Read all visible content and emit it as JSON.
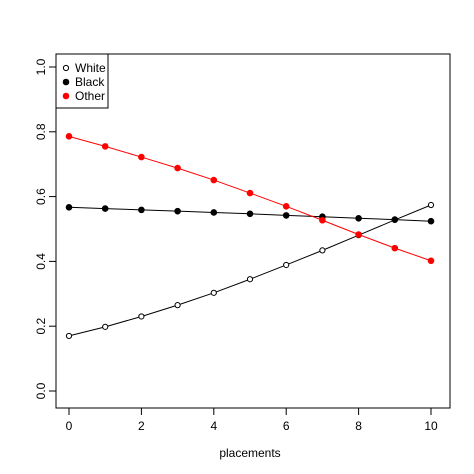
{
  "chart_data": {
    "type": "line",
    "title": "",
    "xlabel": "placements",
    "ylabel": "",
    "xlim": [
      0,
      10
    ],
    "ylim": [
      0,
      1
    ],
    "x_ticks": [
      0,
      2,
      4,
      6,
      8,
      10
    ],
    "y_ticks": [
      0.0,
      0.2,
      0.4,
      0.6,
      0.8,
      1.0
    ],
    "x_tick_labels": [
      "0",
      "2",
      "4",
      "6",
      "8",
      "10"
    ],
    "y_tick_labels": [
      "0.0",
      "0.2",
      "0.4",
      "0.6",
      "0.8",
      "1.0"
    ],
    "grid": false,
    "legend_position": "top-left",
    "x": [
      0,
      1,
      2,
      3,
      4,
      5,
      6,
      7,
      8,
      9,
      10
    ],
    "series": [
      {
        "name": "White",
        "color": "#000000",
        "marker": "open-circle",
        "values": [
          0.17,
          0.198,
          0.23,
          0.265,
          0.303,
          0.345,
          0.389,
          0.434,
          0.481,
          0.528,
          0.574
        ]
      },
      {
        "name": "Black",
        "color": "#000000",
        "marker": "filled-circle",
        "values": [
          0.567,
          0.563,
          0.559,
          0.555,
          0.551,
          0.547,
          0.542,
          0.538,
          0.533,
          0.529,
          0.524
        ]
      },
      {
        "name": "Other",
        "color": "#ff0000",
        "marker": "filled-circle",
        "values": [
          0.786,
          0.755,
          0.722,
          0.688,
          0.651,
          0.611,
          0.57,
          0.527,
          0.483,
          0.441,
          0.402
        ]
      }
    ]
  }
}
